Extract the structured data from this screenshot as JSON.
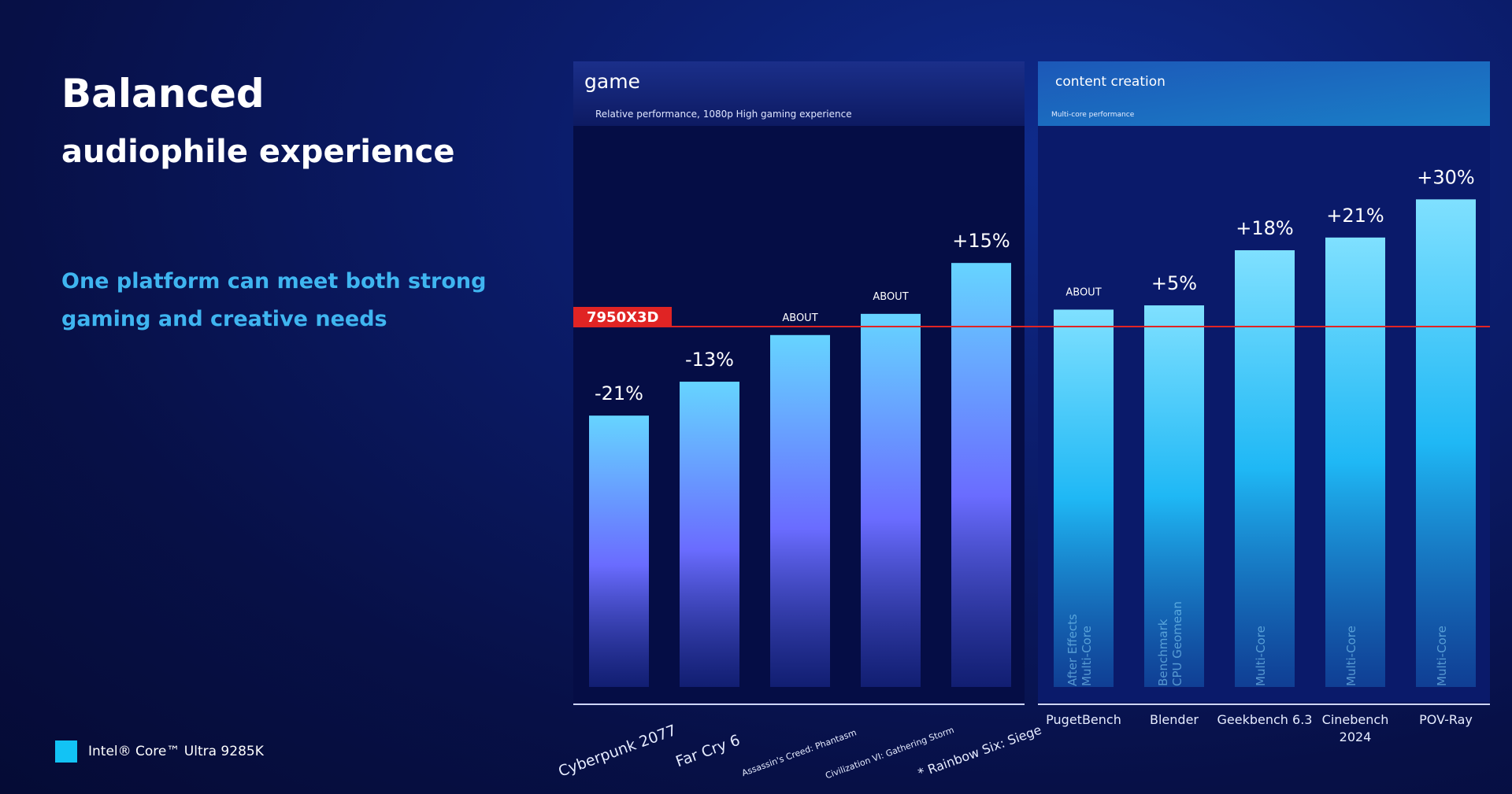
{
  "heading": {
    "title": "Balanced",
    "subtitle": "audiophile experience",
    "tagline_line1": "One platform can meet both strong",
    "tagline_line2": "gaming and creative needs"
  },
  "legend": {
    "label": "Intel® Core™ Ultra 9285K",
    "color": "#12c3f5"
  },
  "colors": {
    "reference_line": "#e02424",
    "baseline_badge": "#e02424"
  },
  "chart_data": [
    {
      "type": "bar",
      "title": "game",
      "subtitle": "Relative performance, 1080p High gaming experience",
      "baseline_label": "7950X3D",
      "categories": [
        "Cyberpunk 2077",
        "Far Cry 6",
        "Assassin's Creed: Phantasm",
        "Civilization VI: Gathering Storm",
        "* Rainbow Six: Siege"
      ],
      "values": [
        -21,
        -13,
        -2,
        3,
        15
      ],
      "labels": [
        "-21%",
        "-13%",
        "ABOUT",
        "ABOUT",
        "+15%"
      ],
      "ylim": [
        -85,
        38
      ]
    },
    {
      "type": "bar",
      "title": "content creation",
      "subtitle": "Multi-core performance",
      "categories": [
        "PugetBench",
        "Blender",
        "Geekbench 6.3",
        "Cinebench 2024",
        "POV-Ray"
      ],
      "inner_labels": [
        "After Effects\nMulti-Core",
        "Benchmark\nCPU Geomean",
        "Multi-Core",
        "Multi-Core",
        "Multi-Core"
      ],
      "values": [
        4,
        5,
        18,
        21,
        30
      ],
      "labels": [
        "ABOUT",
        "+5%",
        "+18%",
        "+21%",
        "+30%"
      ],
      "ylim": [
        -85,
        38
      ]
    }
  ]
}
